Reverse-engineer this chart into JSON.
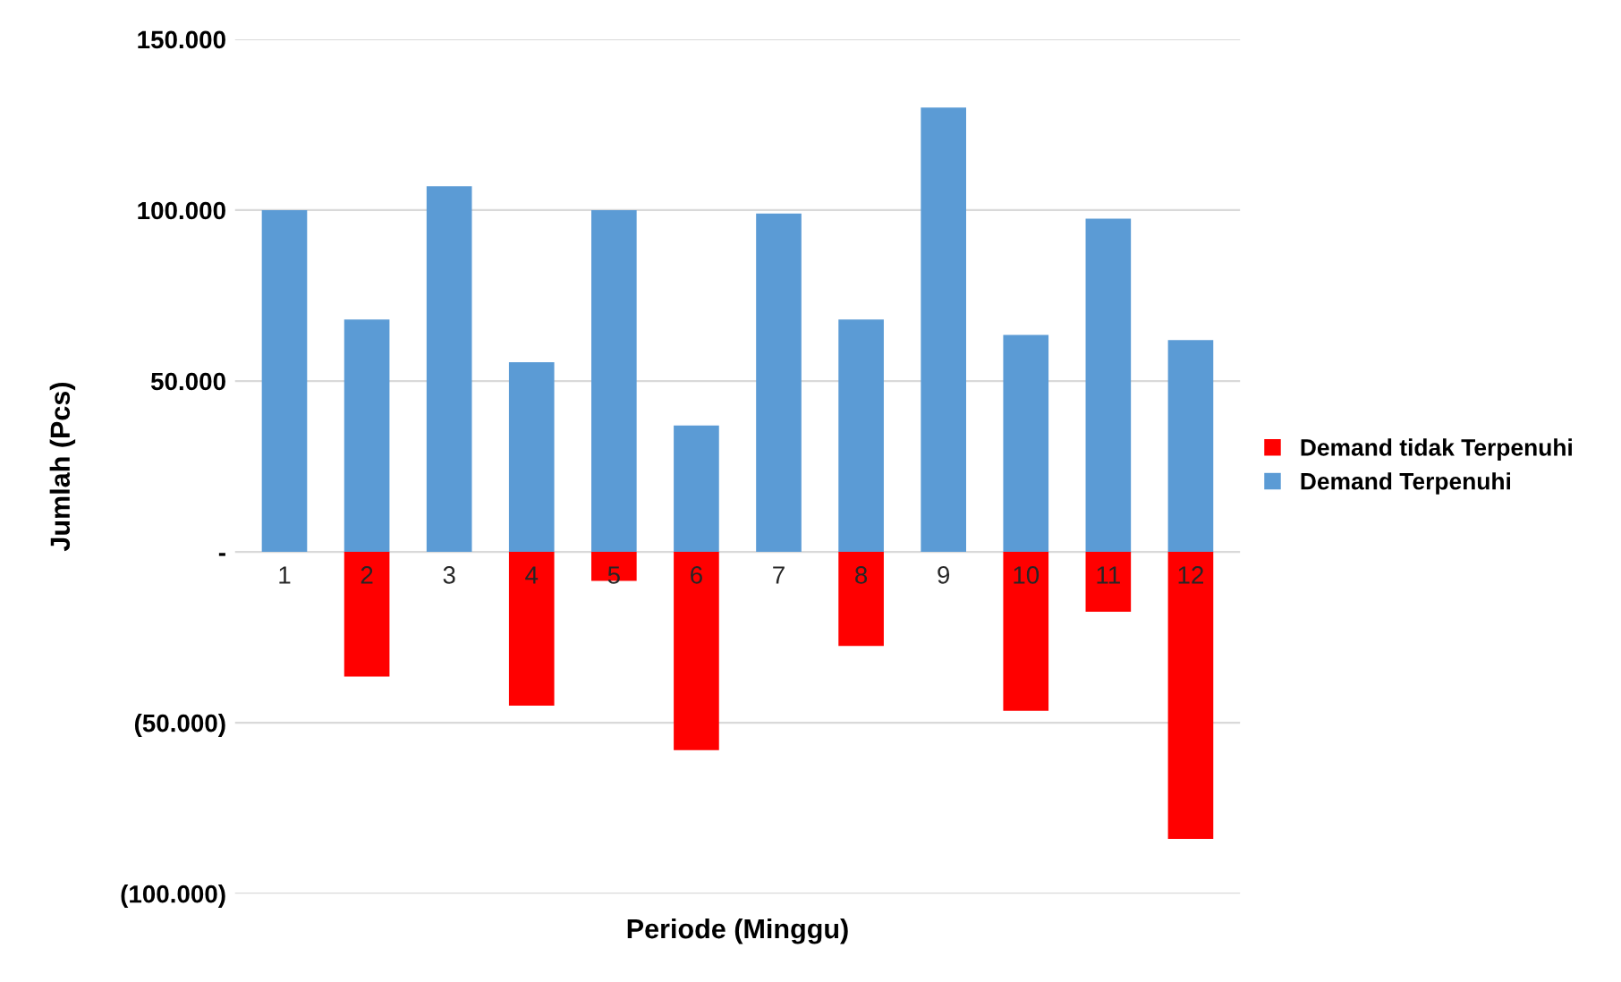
{
  "chart_data": {
    "type": "bar",
    "stacked": true,
    "xlabel": "Periode (Minggu)",
    "ylabel": "Jumlah (Pcs)",
    "categories": [
      "1",
      "2",
      "3",
      "4",
      "5",
      "6",
      "7",
      "8",
      "9",
      "10",
      "11",
      "12"
    ],
    "series": [
      {
        "name": "Demand Terpenuhi",
        "color": "#5b9bd5",
        "values": [
          100000,
          68000,
          107000,
          55500,
          100000,
          37000,
          99000,
          68000,
          130000,
          63500,
          97500,
          62000
        ]
      },
      {
        "name": "Demand tidak Terpenuhi",
        "color": "#ff0000",
        "values": [
          null,
          -36500,
          null,
          -45000,
          -8500,
          -58000,
          null,
          -27500,
          null,
          -46500,
          -17500,
          -84000
        ]
      }
    ],
    "ylim": [
      -100000,
      150000
    ],
    "yticks": [
      {
        "value": -100000,
        "label": "(100.000)"
      },
      {
        "value": -50000,
        "label": "(50.000)"
      },
      {
        "value": 0,
        "label": "-"
      },
      {
        "value": 50000,
        "label": "50.000"
      },
      {
        "value": 100000,
        "label": "100.000"
      },
      {
        "value": 150000,
        "label": "150.000"
      }
    ],
    "grid": "y",
    "legend": "right"
  }
}
